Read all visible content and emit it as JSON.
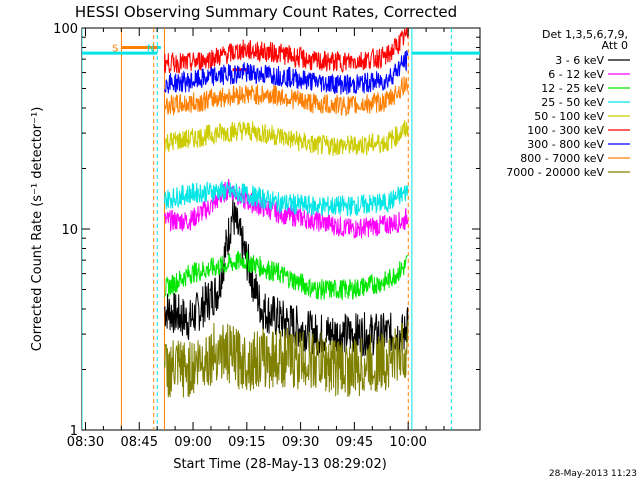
{
  "chart_data": {
    "type": "line",
    "title": "HESSI Observing Summary Count Rates, Corrected",
    "xlabel": "Start Time (28-May-13 08:29:02)",
    "ylabel": "Corrected Count Rate (s⁻¹ detector⁻¹)",
    "x_unit": "minutes after 08:29:02",
    "xlim": [
      0,
      111
    ],
    "ylim": [
      1,
      100
    ],
    "yscale": "log",
    "x_ticks": [
      "08:30",
      "08:45",
      "09:00",
      "09:15",
      "09:30",
      "09:45",
      "10:00"
    ],
    "y_ticks": [
      "1",
      "10",
      "100"
    ],
    "legend": {
      "placement": "right",
      "header": [
        "Det 1,3,5,6,7,9,",
        "Att 0"
      ]
    },
    "timestamp": "28-May-2013 11:23",
    "flags": [
      {
        "label": "S",
        "color": "#ff7f00",
        "x_start": 11,
        "x_end": 21,
        "y": 80
      },
      {
        "label": "N",
        "color": "#00e5e5",
        "x_start": 21,
        "x_end": 22,
        "y": 80
      }
    ],
    "series": [
      {
        "name": "3 - 6 keV",
        "color": "#000000",
        "points": [
          [
            23,
            4
          ],
          [
            30,
            3.5
          ],
          [
            38,
            5
          ],
          [
            42,
            12
          ],
          [
            45,
            8
          ],
          [
            50,
            4
          ],
          [
            56,
            3.5
          ],
          [
            65,
            3
          ],
          [
            75,
            3
          ],
          [
            85,
            3
          ],
          [
            90,
            3
          ],
          [
            91,
            4
          ]
        ]
      },
      {
        "name": "6 - 12 keV",
        "color": "#ff00ff",
        "points": [
          [
            23,
            11
          ],
          [
            30,
            11
          ],
          [
            36,
            13
          ],
          [
            41,
            16
          ],
          [
            45,
            14
          ],
          [
            55,
            12
          ],
          [
            65,
            11
          ],
          [
            75,
            10
          ],
          [
            85,
            10.5
          ],
          [
            90,
            11
          ],
          [
            91,
            12
          ]
        ]
      },
      {
        "name": "12 - 25 keV",
        "color": "#00e600",
        "points": [
          [
            23,
            5
          ],
          [
            30,
            6
          ],
          [
            38,
            6.5
          ],
          [
            45,
            7
          ],
          [
            55,
            6
          ],
          [
            65,
            5
          ],
          [
            75,
            5
          ],
          [
            85,
            5.5
          ],
          [
            90,
            6.5
          ],
          [
            91,
            7
          ]
        ]
      },
      {
        "name": "25 - 50 keV",
        "color": "#00e5e5",
        "points": [
          [
            23,
            14
          ],
          [
            30,
            15
          ],
          [
            38,
            15.5
          ],
          [
            45,
            15
          ],
          [
            55,
            13.5
          ],
          [
            65,
            13
          ],
          [
            75,
            13
          ],
          [
            85,
            13.5
          ],
          [
            90,
            15
          ],
          [
            91,
            16
          ]
        ]
      },
      {
        "name": "50 - 100 keV",
        "color": "#cccc00",
        "points": [
          [
            23,
            27
          ],
          [
            30,
            28
          ],
          [
            38,
            30
          ],
          [
            45,
            31
          ],
          [
            55,
            29
          ],
          [
            65,
            26
          ],
          [
            75,
            26
          ],
          [
            85,
            27
          ],
          [
            90,
            31
          ],
          [
            91,
            32
          ]
        ]
      },
      {
        "name": "100 - 300 keV",
        "color": "#ff0000",
        "points": [
          [
            23,
            67
          ],
          [
            30,
            67
          ],
          [
            38,
            72
          ],
          [
            45,
            78
          ],
          [
            55,
            75
          ],
          [
            65,
            68
          ],
          [
            75,
            68
          ],
          [
            85,
            72
          ],
          [
            90,
            90
          ],
          [
            91,
            95
          ]
        ]
      },
      {
        "name": "300 - 800 keV",
        "color": "#0000ff",
        "points": [
          [
            23,
            53
          ],
          [
            30,
            54
          ],
          [
            38,
            58
          ],
          [
            45,
            60
          ],
          [
            55,
            58
          ],
          [
            65,
            54
          ],
          [
            75,
            52
          ],
          [
            85,
            55
          ],
          [
            90,
            68
          ],
          [
            91,
            70
          ]
        ]
      },
      {
        "name": "800 - 7000 keV",
        "color": "#ff7f00",
        "points": [
          [
            23,
            41
          ],
          [
            30,
            42
          ],
          [
            38,
            45
          ],
          [
            45,
            47
          ],
          [
            55,
            46
          ],
          [
            65,
            42
          ],
          [
            75,
            41
          ],
          [
            85,
            43
          ],
          [
            90,
            52
          ],
          [
            91,
            55
          ]
        ]
      },
      {
        "name": "7000 - 20000 keV",
        "color": "#808000",
        "points": [
          [
            23,
            2
          ],
          [
            30,
            2
          ],
          [
            38,
            2.5
          ],
          [
            45,
            2.2
          ],
          [
            55,
            2.3
          ],
          [
            65,
            2.2
          ],
          [
            75,
            2
          ],
          [
            85,
            2.2
          ],
          [
            90,
            2.5
          ],
          [
            91,
            2.5
          ]
        ]
      }
    ]
  }
}
